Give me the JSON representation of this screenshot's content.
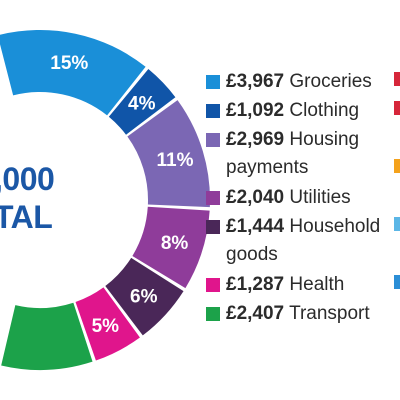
{
  "chart_data": {
    "type": "pie",
    "total_label_lines": [
      ",000",
      "TAL"
    ],
    "slices": [
      {
        "name": "Groceries",
        "amount": "£3,967",
        "label": "15%",
        "value": 15,
        "color": "#1a8fd8"
      },
      {
        "name": "Clothing",
        "amount": "£1,092",
        "label": "4%",
        "value": 4,
        "color": "#1055a8"
      },
      {
        "name": "Housing",
        "name2": "payments",
        "amount": "£2,969",
        "label": "11%",
        "value": 11,
        "color": "#7b67b4"
      },
      {
        "name": "Utilities",
        "amount": "£2,040",
        "label": "8%",
        "value": 8,
        "color": "#8f3c9a"
      },
      {
        "name": "Household",
        "name2": "goods",
        "amount": "£1,444",
        "label": "6%",
        "value": 6,
        "color": "#4a2758"
      },
      {
        "name": "Health",
        "amount": "£1,287",
        "label": "5%",
        "value": 5,
        "color": "#e0158c"
      },
      {
        "name": "Transport",
        "amount": "£2,407",
        "value": 9,
        "color": "#1ca24a"
      }
    ],
    "clipped_right_marks": [
      "#d6263a",
      "#d6263a",
      "#f4a21c",
      "#5bb6e6",
      "#2b8ed6"
    ]
  }
}
